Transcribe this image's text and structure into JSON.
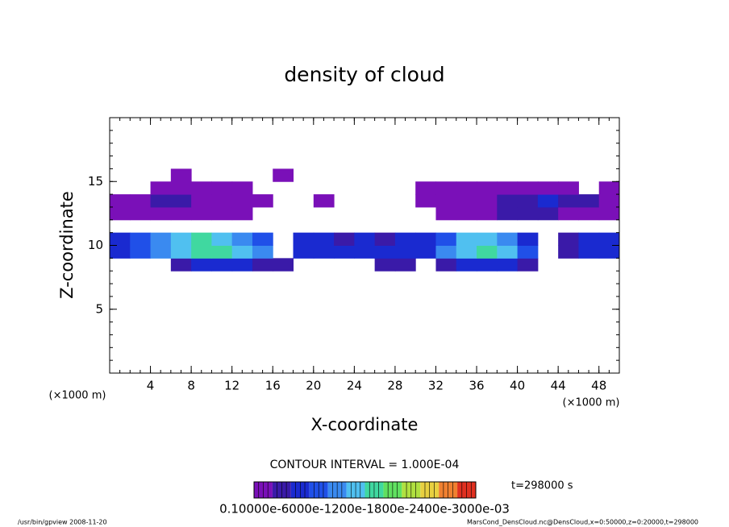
{
  "chart_data": {
    "type": "contour",
    "title": "density of cloud",
    "xlabel": "X-coordinate",
    "ylabel": "Z-coordinate",
    "x_unit": "(×1000 m)",
    "x_unit_right": "(×1000 m)",
    "xlim": [
      0,
      50
    ],
    "xticks": [
      4,
      8,
      12,
      16,
      20,
      24,
      28,
      32,
      36,
      40,
      44,
      48
    ],
    "ylim": [
      0,
      20
    ],
    "yticks": [
      5,
      10,
      15
    ],
    "minor_tick_step": 1,
    "x": [
      1,
      3,
      5,
      7,
      9,
      11,
      13,
      15,
      17,
      19,
      21,
      23,
      25,
      27,
      29,
      31,
      33,
      35,
      37,
      39,
      41,
      43,
      45,
      47,
      49
    ],
    "y": [
      8.5,
      9.5,
      10.5,
      11.5,
      12.5,
      13.5,
      14.5,
      15.5
    ],
    "z": [
      [
        null,
        null,
        null,
        0.18,
        0.2,
        0.2,
        0.2,
        0.18,
        0.15,
        null,
        null,
        null,
        null,
        0.15,
        0.15,
        null,
        0.18,
        0.2,
        0.2,
        0.2,
        0.18,
        null,
        null,
        null,
        null
      ],
      [
        0.2,
        0.25,
        0.3,
        0.35,
        0.4,
        0.4,
        0.35,
        0.3,
        null,
        0.2,
        0.22,
        0.2,
        0.2,
        0.2,
        0.2,
        0.22,
        0.3,
        0.35,
        0.4,
        0.35,
        0.25,
        null,
        0.15,
        0.2,
        0.22
      ],
      [
        0.22,
        0.28,
        0.3,
        0.35,
        0.4,
        0.35,
        0.3,
        0.25,
        null,
        0.2,
        0.2,
        0.18,
        0.2,
        0.18,
        0.2,
        0.22,
        0.28,
        0.35,
        0.35,
        0.3,
        0.2,
        null,
        0.18,
        0.2,
        0.2
      ],
      [
        null,
        null,
        null,
        null,
        null,
        null,
        null,
        null,
        null,
        null,
        null,
        null,
        null,
        null,
        null,
        null,
        null,
        null,
        null,
        null,
        null,
        null,
        null,
        null,
        null
      ],
      [
        0.12,
        0.12,
        0.13,
        0.14,
        0.13,
        0.12,
        0.12,
        null,
        null,
        null,
        null,
        null,
        null,
        null,
        null,
        null,
        0.12,
        0.13,
        0.14,
        0.15,
        0.15,
        0.16,
        0.14,
        0.12,
        0.12
      ],
      [
        0.14,
        0.13,
        0.15,
        0.16,
        0.14,
        0.13,
        0.12,
        0.12,
        null,
        null,
        0.12,
        null,
        null,
        null,
        null,
        0.12,
        0.13,
        0.14,
        0.13,
        0.15,
        0.18,
        0.2,
        0.18,
        0.15,
        0.13
      ],
      [
        null,
        null,
        0.12,
        0.13,
        0.13,
        0.12,
        0.12,
        null,
        null,
        null,
        null,
        null,
        null,
        null,
        null,
        0.12,
        0.13,
        0.12,
        0.12,
        0.12,
        0.13,
        0.13,
        0.12,
        null,
        0.12
      ],
      [
        null,
        null,
        null,
        0.12,
        null,
        null,
        null,
        null,
        0.12,
        null,
        null,
        null,
        null,
        null,
        null,
        null,
        null,
        null,
        null,
        null,
        null,
        null,
        null,
        null,
        null
      ]
    ],
    "levels": [
      0.1,
      0.15,
      0.2,
      0.25,
      0.3,
      0.35,
      0.4,
      0.45,
      0.5,
      0.55,
      0.6,
      0.65
    ],
    "colors": [
      "#7a10b8",
      "#3a1aa8",
      "#1a2ad0",
      "#2050e8",
      "#3a8af0",
      "#50c0f0",
      "#40d8a0",
      "#60e060",
      "#b0e040",
      "#e8d040",
      "#f08030",
      "#e03020"
    ],
    "contour_interval": "CONTOUR INTERVAL = 1.000E-04",
    "time_label": "t=298000 s",
    "colorbar_label": "0.10000e-6000e-1200e-1800e-2400e-3000e-03",
    "footer_left": "/usr/bin/gpview   2008-11-20",
    "footer_right": "MarsCond_DensCloud.nc@DensCloud,x=0:50000,z=0:20000,t=298000"
  }
}
